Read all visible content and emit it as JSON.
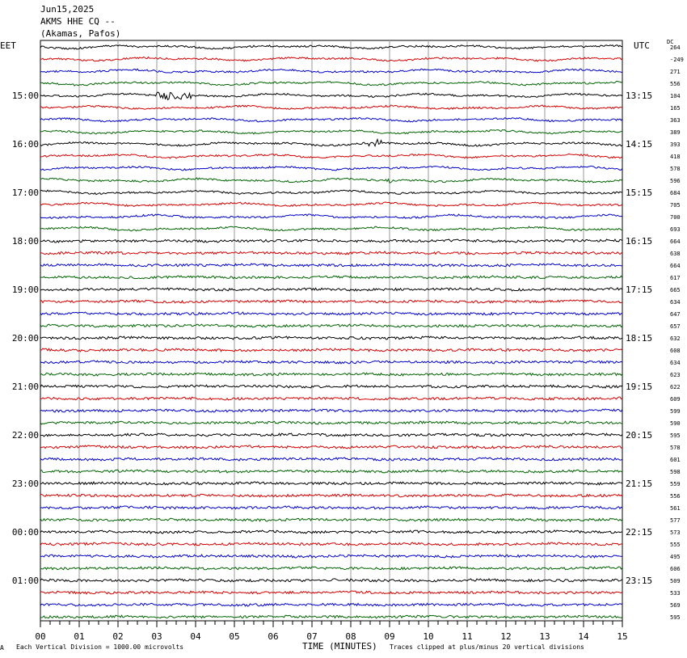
{
  "header": {
    "date": "Jun15,2025",
    "station": "AKMS HHE CQ --",
    "location": "(Akamas, Pafos)"
  },
  "corners": {
    "left_tz": "EET",
    "right_tz": "UTC",
    "dc": "DC"
  },
  "footer": {
    "scale_note": "Each Vertical Division = 1000.00 microvolts",
    "xaxis_title": "TIME (MINUTES)",
    "clip_note": "Traces clipped at plus/minus 20 vertical divisions",
    "corner_mark": "A"
  },
  "colors": {
    "cycle": [
      "#000000",
      "#d40000",
      "#0000c8",
      "#006400"
    ],
    "grid": "#9a9a9a"
  },
  "chart_data": {
    "type": "line",
    "title": "",
    "xlabel": "TIME (MINUTES)",
    "xlim": [
      0,
      15
    ],
    "x_ticks": [
      "00",
      "01",
      "02",
      "03",
      "04",
      "05",
      "06",
      "07",
      "08",
      "09",
      "10",
      "11",
      "12",
      "13",
      "14",
      "15"
    ],
    "left_time_labels": [
      "15:00",
      "16:00",
      "17:00",
      "18:00",
      "19:00",
      "20:00",
      "21:00",
      "22:00",
      "23:00",
      "00:00",
      "01:00"
    ],
    "right_time_labels": [
      "13:15",
      "14:15",
      "15:15",
      "16:15",
      "17:15",
      "18:15",
      "19:15",
      "20:15",
      "21:15",
      "22:15",
      "23:15"
    ],
    "dc_offsets": [
      "264",
      "-249",
      "271",
      "556",
      "104",
      "165",
      "363",
      "389",
      "393",
      "418",
      "578",
      "596",
      "684",
      "705",
      "700",
      "693",
      "664",
      "638",
      "664",
      "617",
      "665",
      "634",
      "647",
      "657",
      "632",
      "608",
      "634",
      "623",
      "622",
      "609",
      "599",
      "590",
      "595",
      "578",
      "601",
      "598",
      "559",
      "556",
      "561",
      "577",
      "573",
      "555",
      "495",
      "606",
      "509",
      "533",
      "569",
      "595"
    ],
    "grid": true,
    "events": [
      {
        "trace": 4,
        "minute_start": 3.0,
        "minute_end": 3.9
      },
      {
        "trace": 8,
        "minute_start": 8.4,
        "minute_end": 8.8
      },
      {
        "trace": 11,
        "minute_start": 8.9,
        "minute_end": 9.1
      }
    ]
  }
}
